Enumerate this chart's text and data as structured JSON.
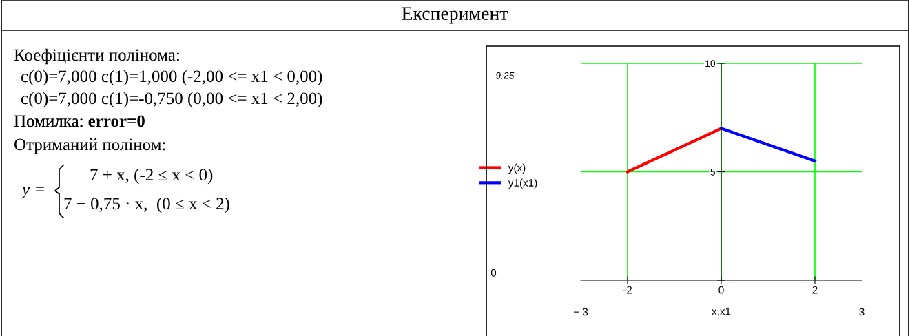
{
  "chart_data": {
    "type": "line",
    "title": "Експеримент",
    "annotations": [
      "Коефіцієнти полінома:",
      "c(0)=7,000 c(1)=1,000 (-2,00 <= x1 < 0,00)",
      "c(0)=7,000 c(1)=-0,750 (0,00 <= x1 < 2,00)",
      "Помилка:",
      "error=0",
      "Отриманий поліном:",
      "y =",
      "7 + x, (-2 ≤ x < 0)",
      "7 − 0,75 · x,  (0 ≤ x < 2)",
      "9.25",
      "− 3",
      "3",
      "0"
    ],
    "xlabel": "x,x1",
    "xlim": [
      -3,
      3
    ],
    "xticks": [
      -2,
      0,
      2
    ],
    "ylim": [
      0,
      10
    ],
    "yticks": [
      {
        "value": 0,
        "label": null
      },
      5,
      10
    ],
    "grid": true,
    "legend": "left",
    "series": [
      {
        "name": "y(x)",
        "color": "#ff0000",
        "x": [
          -2,
          0
        ],
        "values": [
          5,
          7
        ]
      },
      {
        "name": "y1(x1)",
        "color": "#0000ff",
        "x": [
          0,
          2
        ],
        "values": [
          7,
          5.5
        ]
      }
    ]
  }
}
